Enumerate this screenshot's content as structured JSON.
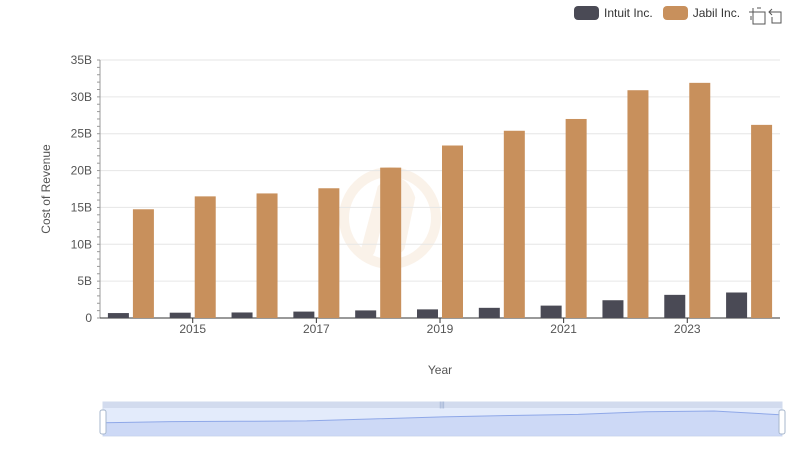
{
  "chart_data": {
    "type": "bar",
    "x": [
      2014,
      2015,
      2016,
      2017,
      2018,
      2019,
      2020,
      2021,
      2022,
      2023,
      2024
    ],
    "x_tick_labels": [
      "2015",
      "2017",
      "2019",
      "2021",
      "2023"
    ],
    "series": [
      {
        "name": "Intuit Inc.",
        "color": "#4a4a55",
        "values": [
          0.67,
          0.72,
          0.75,
          0.87,
          1.03,
          1.17,
          1.38,
          1.68,
          2.41,
          3.14,
          3.46
        ]
      },
      {
        "name": "Jabil Inc.",
        "color": "#c8905c",
        "values": [
          14.75,
          16.5,
          16.9,
          17.6,
          20.4,
          23.4,
          25.4,
          27.0,
          30.9,
          31.9,
          26.2
        ]
      }
    ],
    "y_ticks": [
      0,
      5,
      10,
      15,
      20,
      25,
      30,
      35
    ],
    "y_tick_labels": [
      "0",
      "5B",
      "10B",
      "15B",
      "20B",
      "25B",
      "30B",
      "35B"
    ],
    "ylim": [
      0,
      35
    ],
    "y_unit": "billions",
    "xlabel": "Year",
    "ylabel": "Cost of Revenue",
    "title": "",
    "legend_position": "top-right",
    "grid": true
  },
  "toolbox": {
    "zoom": "zoom-icon",
    "restore": "restore-icon"
  }
}
